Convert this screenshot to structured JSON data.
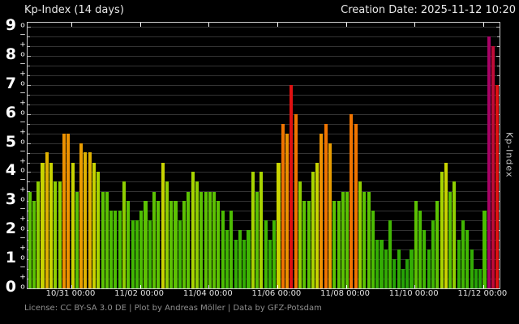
{
  "header": {
    "title": "Kp-Index (14 days)",
    "creation_date": "Creation Date: 2025-11-12 10:20"
  },
  "footer": {
    "license_text": "License: CC BY-SA 3.0 DE | Plot by Andreas Möller | Data by GFZ-Potsdam"
  },
  "y_axis": {
    "numerals": [
      "9",
      "8",
      "7",
      "6",
      "5",
      "4",
      "3",
      "2",
      "1",
      "0"
    ],
    "sub_plus": "+",
    "sub_zero": "o",
    "sub_minus": "−",
    "right_label": "Kp-Index"
  },
  "x_axis": {
    "tick_labels": [
      "10/31 00:00",
      "11/02 00:00",
      "11/04 00:00",
      "11/06 00:00",
      "11/08 00:00",
      "11/10 00:00",
      "11/12 00:00"
    ],
    "tick_bar_boundaries": [
      11,
      27,
      43,
      59,
      75,
      91,
      107
    ]
  },
  "chart_data": {
    "type": "bar",
    "title": "Kp-Index (14 days)",
    "ylabel": "Kp-Index",
    "ylim": [
      0,
      9.15
    ],
    "y_resolution": 0.333,
    "interval_hours": 3,
    "grid": "horizontal lines every 1/3 Kp, black background",
    "legend_position": "none",
    "values": [
      3.33,
      3.0,
      3.67,
      4.33,
      4.67,
      4.33,
      3.67,
      3.67,
      5.33,
      5.33,
      4.33,
      3.33,
      5.0,
      4.67,
      4.67,
      4.33,
      4.0,
      3.33,
      3.33,
      2.67,
      2.67,
      2.67,
      3.67,
      3.0,
      2.33,
      2.33,
      2.67,
      3.0,
      2.33,
      3.33,
      3.0,
      4.33,
      3.67,
      3.0,
      3.0,
      2.33,
      3.0,
      3.33,
      4.0,
      3.67,
      3.33,
      3.33,
      3.33,
      3.33,
      3.0,
      2.67,
      2.0,
      2.67,
      1.67,
      2.0,
      1.67,
      2.0,
      4.0,
      3.33,
      4.0,
      2.33,
      1.67,
      2.33,
      4.33,
      5.67,
      5.33,
      7.0,
      6.0,
      3.67,
      3.0,
      3.0,
      4.0,
      4.33,
      5.33,
      5.67,
      5.0,
      3.0,
      3.0,
      3.33,
      3.33,
      6.0,
      5.67,
      3.67,
      3.33,
      3.33,
      2.67,
      1.67,
      1.67,
      1.33,
      2.33,
      1.0,
      1.33,
      0.67,
      1.0,
      1.33,
      3.0,
      2.67,
      2.0,
      1.33,
      2.33,
      3.0,
      4.0,
      4.33,
      3.33,
      3.67,
      1.67,
      2.33,
      2.0,
      1.33,
      0.67,
      0.67,
      2.67,
      8.67,
      8.33,
      7.0
    ],
    "color_scale": [
      [
        1.0,
        "#26a306"
      ],
      [
        1.67,
        "#33ad04"
      ],
      [
        2.33,
        "#41b703"
      ],
      [
        2.67,
        "#4cbd02"
      ],
      [
        3.33,
        "#5cc203"
      ],
      [
        3.67,
        "#8fcf01"
      ],
      [
        4.0,
        "#a9d500"
      ],
      [
        4.33,
        "#c9d400"
      ],
      [
        4.67,
        "#e0b200"
      ],
      [
        5.0,
        "#ea9d00"
      ],
      [
        5.33,
        "#ee9200"
      ],
      [
        6.0,
        "#f07400"
      ],
      [
        7.33,
        "#e01111"
      ],
      [
        8.33,
        "#c00a38"
      ],
      [
        9.0,
        "#a80266"
      ]
    ]
  }
}
